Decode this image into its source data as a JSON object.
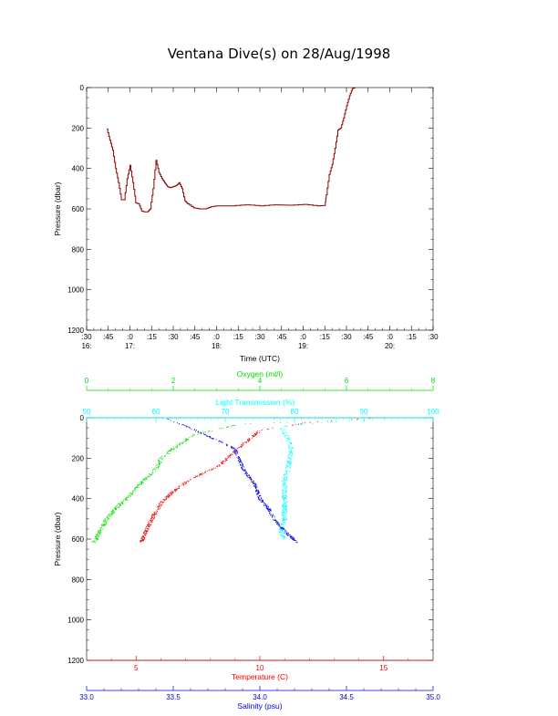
{
  "title": "Ventana Dive(s) on 28/Aug/1998",
  "colors": {
    "oxygen": "#00dd00",
    "transmission": "#00ffff",
    "temperature": "#ee0000",
    "salinity": "#0000dd",
    "pressure_line": "#8b0000"
  },
  "chart_data": [
    {
      "type": "line",
      "title": "Ventana Dive(s) on 28/Aug/1998",
      "xlabel": "Time (UTC)",
      "ylabel": "Pressure (dbar)",
      "y_inverted": true,
      "ylim": [
        1200,
        0
      ],
      "xlim_minutes": [
        990,
        1230
      ],
      "y_ticks": [
        "0",
        "200",
        "400",
        "600",
        "800",
        "1000",
        "1200"
      ],
      "x_ticks": [
        {
          "minute": 990,
          "top": ":30",
          "hour": "16:"
        },
        {
          "minute": 1005,
          "top": ":45",
          "hour": ""
        },
        {
          "minute": 1020,
          "top": ":0",
          "hour": "17:"
        },
        {
          "minute": 1035,
          "top": ":15",
          "hour": ""
        },
        {
          "minute": 1050,
          "top": ":30",
          "hour": ""
        },
        {
          "minute": 1065,
          "top": ":45",
          "hour": ""
        },
        {
          "minute": 1080,
          "top": ":0",
          "hour": "18:"
        },
        {
          "minute": 1095,
          "top": ":15",
          "hour": ""
        },
        {
          "minute": 1110,
          "top": ":30",
          "hour": ""
        },
        {
          "minute": 1125,
          "top": ":45",
          "hour": ""
        },
        {
          "minute": 1140,
          "top": ":0",
          "hour": "19:"
        },
        {
          "minute": 1155,
          "top": ":15",
          "hour": ""
        },
        {
          "minute": 1170,
          "top": ":30",
          "hour": ""
        },
        {
          "minute": 1185,
          "top": ":45",
          "hour": ""
        },
        {
          "minute": 1200,
          "top": ":0",
          "hour": "20:"
        },
        {
          "minute": 1215,
          "top": ":15",
          "hour": ""
        },
        {
          "minute": 1230,
          "top": ":30",
          "hour": ""
        }
      ],
      "series": [
        {
          "values_minute_pressure": [
            [
              1004,
              205
            ],
            [
              1006,
              260
            ],
            [
              1008,
              310
            ],
            [
              1010,
              400
            ],
            [
              1012,
              470
            ],
            [
              1014,
              555
            ],
            [
              1016,
              555
            ],
            [
              1018,
              450
            ],
            [
              1020,
              385
            ],
            [
              1022,
              470
            ],
            [
              1024,
              570
            ],
            [
              1026,
              575
            ],
            [
              1028,
              610
            ],
            [
              1030,
              615
            ],
            [
              1032,
              615
            ],
            [
              1034,
              600
            ],
            [
              1036,
              500
            ],
            [
              1038,
              360
            ],
            [
              1040,
              420
            ],
            [
              1042,
              450
            ],
            [
              1044,
              470
            ],
            [
              1046,
              490
            ],
            [
              1048,
              495
            ],
            [
              1050,
              490
            ],
            [
              1052,
              485
            ],
            [
              1054,
              470
            ],
            [
              1056,
              500
            ],
            [
              1058,
              560
            ],
            [
              1060,
              575
            ],
            [
              1064,
              595
            ],
            [
              1068,
              600
            ],
            [
              1072,
              600
            ],
            [
              1076,
              590
            ],
            [
              1080,
              585
            ],
            [
              1090,
              585
            ],
            [
              1100,
              580
            ],
            [
              1110,
              585
            ],
            [
              1120,
              580
            ],
            [
              1130,
              582
            ],
            [
              1140,
              578
            ],
            [
              1150,
              585
            ],
            [
              1155,
              583
            ],
            [
              1156,
              530
            ],
            [
              1158,
              430
            ],
            [
              1160,
              380
            ],
            [
              1162,
              300
            ],
            [
              1164,
              210
            ],
            [
              1166,
              200
            ],
            [
              1168,
              150
            ],
            [
              1170,
              90
            ],
            [
              1172,
              40
            ],
            [
              1174,
              5
            ],
            [
              1176,
              0
            ]
          ]
        }
      ]
    },
    {
      "type": "scatter",
      "ylabel": "Pressure (dbar)",
      "y_inverted": true,
      "ylim": [
        1200,
        0
      ],
      "y_ticks": [
        "0",
        "200",
        "400",
        "600",
        "800",
        "1000",
        "1200"
      ],
      "axes": {
        "oxygen": {
          "label": "Oxygen (ml/l)",
          "range": [
            0,
            8
          ],
          "ticks": [
            "0",
            "2",
            "4",
            "6",
            "8"
          ]
        },
        "transmission": {
          "label": "Light Transmission (%)",
          "range": [
            50,
            100
          ],
          "ticks": [
            "50",
            "60",
            "70",
            "80",
            "90",
            "100"
          ]
        },
        "temperature": {
          "label": "Temperature (C)",
          "range": [
            3,
            17
          ],
          "ticks": [
            "5",
            "10",
            "15"
          ]
        },
        "salinity": {
          "label": "Salinity (psu)",
          "range": [
            33.0,
            35.0
          ],
          "ticks": [
            "33.0",
            "33.5",
            "34.0",
            "34.5",
            "35.0"
          ]
        }
      },
      "series": [
        {
          "name": "Oxygen (ml/l)",
          "profile": [
            [
              7.4,
              0
            ],
            [
              6.0,
              10
            ],
            [
              3.5,
              30
            ],
            [
              2.5,
              80
            ],
            [
              2.0,
              150
            ],
            [
              1.7,
              200
            ],
            [
              1.6,
              250
            ],
            [
              1.3,
              310
            ],
            [
              1.0,
              380
            ],
            [
              0.7,
              440
            ],
            [
              0.45,
              500
            ],
            [
              0.3,
              560
            ],
            [
              0.2,
              600
            ],
            [
              0.15,
              615
            ]
          ]
        },
        {
          "name": "Light Transmission (%)",
          "profile": [
            [
              95,
              0
            ],
            [
              85,
              20
            ],
            [
              78,
              40
            ],
            [
              79,
              100
            ],
            [
              79.5,
              150
            ],
            [
              79,
              250
            ],
            [
              78.5,
              300
            ],
            [
              78.5,
              400
            ],
            [
              78.5,
              500
            ],
            [
              78,
              560
            ],
            [
              78.5,
              600
            ]
          ]
        },
        {
          "name": "Temperature (C)",
          "profile": [
            [
              14.5,
              0
            ],
            [
              12,
              20
            ],
            [
              10,
              60
            ],
            [
              9,
              160
            ],
            [
              8.3,
              240
            ],
            [
              7.2,
              300
            ],
            [
              6.5,
              360
            ],
            [
              6.0,
              420
            ],
            [
              5.7,
              480
            ],
            [
              5.5,
              530
            ],
            [
              5.3,
              580
            ],
            [
              5.2,
              615
            ]
          ]
        },
        {
          "name": "Salinity (psu)",
          "profile": [
            [
              33.45,
              0
            ],
            [
              33.6,
              50
            ],
            [
              33.85,
              150
            ],
            [
              33.9,
              250
            ],
            [
              33.97,
              330
            ],
            [
              34.0,
              400
            ],
            [
              34.05,
              450
            ],
            [
              34.08,
              500
            ],
            [
              34.13,
              550
            ],
            [
              34.18,
              590
            ],
            [
              34.22,
              615
            ]
          ]
        }
      ]
    }
  ]
}
